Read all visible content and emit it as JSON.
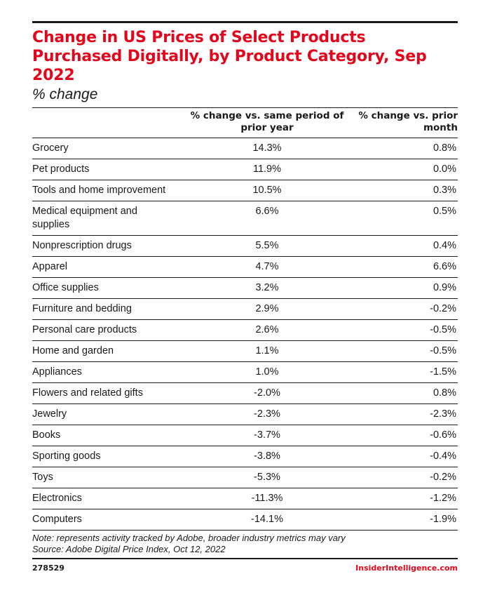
{
  "chart_data": {
    "type": "table",
    "title": "Change in US Prices of Select Products Purchased Digitally, by Product Category, Sep 2022",
    "subtitle": "% change",
    "columns": [
      "% change vs. same period of prior year",
      "% change vs. prior month"
    ],
    "rows": [
      {
        "category": "Grocery",
        "yoy": "14.3%",
        "mom": "0.8%"
      },
      {
        "category": "Pet products",
        "yoy": "11.9%",
        "mom": "0.0%"
      },
      {
        "category": "Tools and home improvement",
        "yoy": "10.5%",
        "mom": "0.3%"
      },
      {
        "category": "Medical equipment and supplies",
        "yoy": "6.6%",
        "mom": "0.5%"
      },
      {
        "category": "Nonprescription drugs",
        "yoy": "5.5%",
        "mom": "0.4%"
      },
      {
        "category": "Apparel",
        "yoy": "4.7%",
        "mom": "6.6%"
      },
      {
        "category": "Office supplies",
        "yoy": "3.2%",
        "mom": "0.9%"
      },
      {
        "category": "Furniture and bedding",
        "yoy": "2.9%",
        "mom": "-0.2%"
      },
      {
        "category": "Personal care products",
        "yoy": "2.6%",
        "mom": "-0.5%"
      },
      {
        "category": "Home and garden",
        "yoy": "1.1%",
        "mom": "-0.5%"
      },
      {
        "category": "Appliances",
        "yoy": "1.0%",
        "mom": "-1.5%"
      },
      {
        "category": "Flowers and related gifts",
        "yoy": "-2.0%",
        "mom": "0.8%"
      },
      {
        "category": "Jewelry",
        "yoy": "-2.3%",
        "mom": "-2.3%"
      },
      {
        "category": "Books",
        "yoy": "-3.7%",
        "mom": "-0.6%"
      },
      {
        "category": "Sporting goods",
        "yoy": "-3.8%",
        "mom": "-0.4%"
      },
      {
        "category": "Toys",
        "yoy": "-5.3%",
        "mom": "-0.2%"
      },
      {
        "category": "Electronics",
        "yoy": "-11.3%",
        "mom": "-1.2%"
      },
      {
        "category": "Computers",
        "yoy": "-14.1%",
        "mom": "-1.9%"
      }
    ],
    "note": "Note: represents activity tracked by Adobe, broader industry metrics may vary",
    "source": "Source: Adobe Digital Price Index, Oct 12, 2022"
  },
  "footer": {
    "chart_id": "278529",
    "brand": "InsiderIntelligence.com"
  },
  "colors": {
    "title": "#e3051b",
    "brand": "#e3051b",
    "text": "#1a1a1a"
  }
}
